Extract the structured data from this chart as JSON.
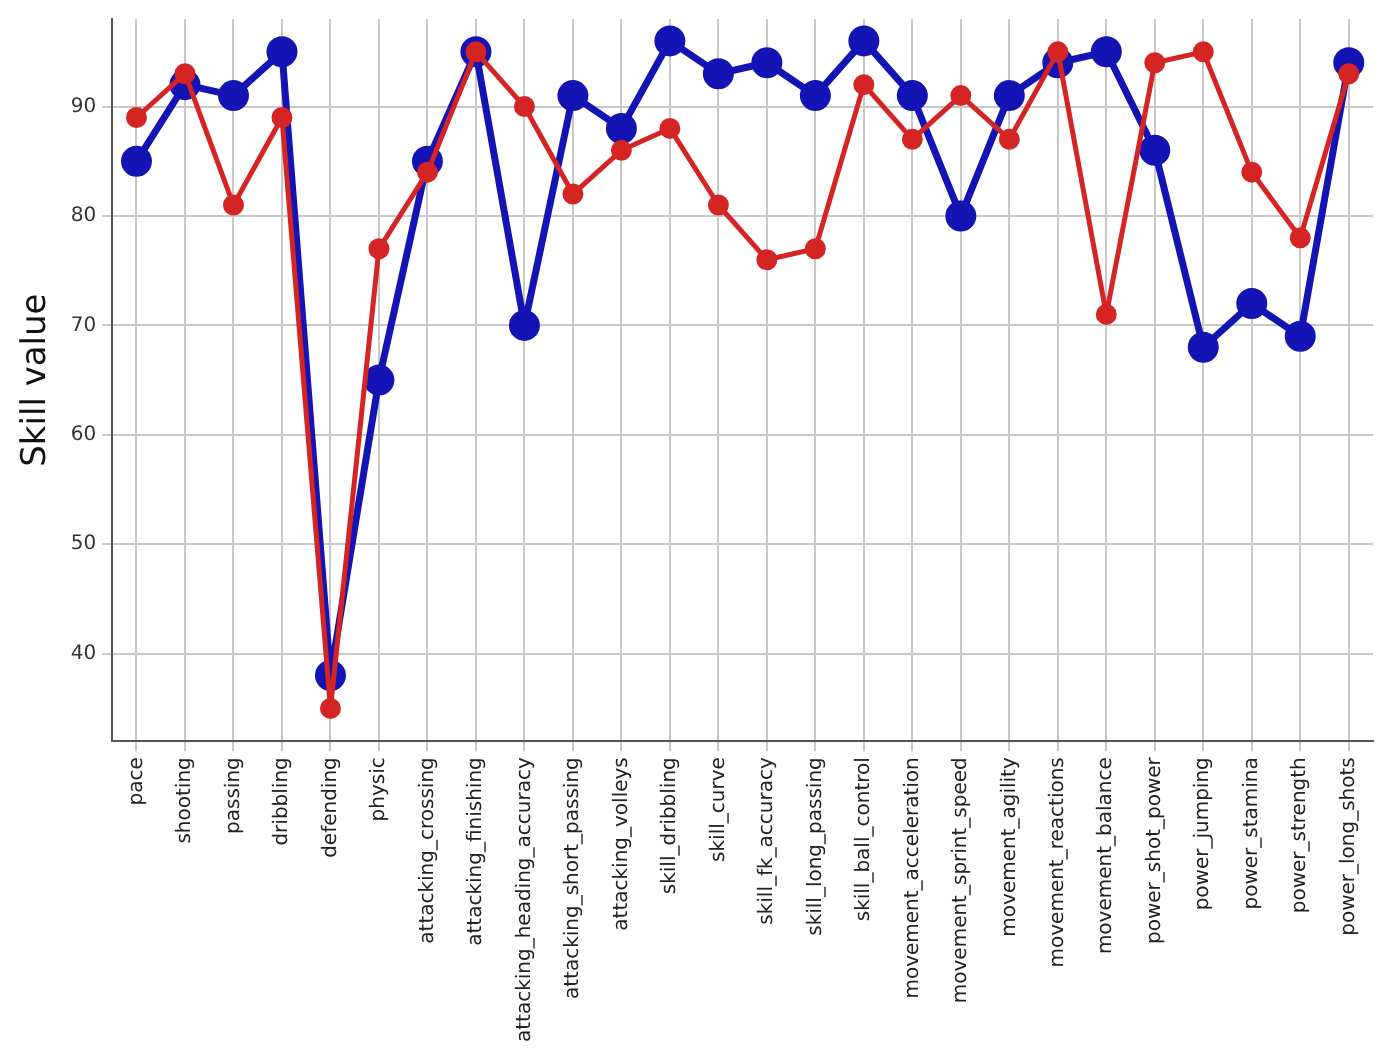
{
  "chart_data": {
    "type": "line",
    "ylabel": "Skill value",
    "categories": [
      "pace",
      "shooting",
      "passing",
      "dribbling",
      "defending",
      "physic",
      "attacking_crossing",
      "attacking_finishing",
      "attacking_heading_accuracy",
      "attacking_short_passing",
      "attacking_volleys",
      "skill_dribbling",
      "skill_curve",
      "skill_fk_accuracy",
      "skill_long_passing",
      "skill_ball_control",
      "movement_acceleration",
      "movement_sprint_speed",
      "movement_agility",
      "movement_reactions",
      "movement_balance",
      "power_shot_power",
      "power_jumping",
      "power_stamina",
      "power_strength",
      "power_long_shots"
    ],
    "series": [
      {
        "color": "#1414b4",
        "values": [
          85,
          92,
          91,
          95,
          38,
          65,
          85,
          95,
          70,
          91,
          88,
          96,
          93,
          94,
          91,
          96,
          91,
          80,
          91,
          94,
          95,
          86,
          68,
          72,
          69,
          94
        ]
      },
      {
        "color": "#d42424",
        "values": [
          89,
          93,
          81,
          89,
          35,
          77,
          84,
          95,
          90,
          82,
          86,
          88,
          81,
          76,
          77,
          92,
          87,
          91,
          87,
          95,
          71,
          94,
          95,
          84,
          78,
          93
        ]
      }
    ],
    "ylim": [
      32,
      98
    ],
    "yticks": [
      40,
      50,
      60,
      70,
      80,
      90
    ],
    "grid": true,
    "legend": false,
    "marker": "circle",
    "line_style": "solid"
  }
}
